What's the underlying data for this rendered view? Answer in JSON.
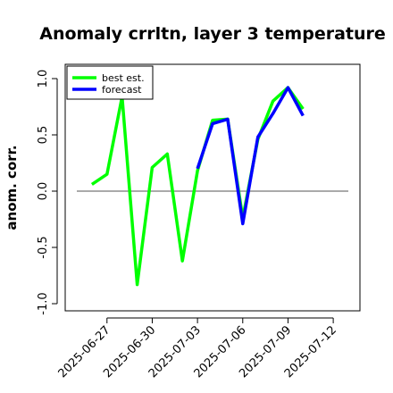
{
  "chart_data": {
    "type": "line",
    "title": "Anomaly crrltn, layer 3 temperature",
    "xlabel": "",
    "ylabel": "anom. corr.",
    "ylim": [
      -1.05,
      1.1
    ],
    "yticks": [
      -1.0,
      -0.5,
      0.0,
      0.5,
      1.0
    ],
    "ytick_labels": [
      "-1.0",
      "-0.5",
      "0.0",
      "0.5",
      "1.0"
    ],
    "xlim": [
      "2025-06-25",
      "2025-07-13"
    ],
    "xticks": [
      "2025-06-27",
      "2025-06-30",
      "2025-07-03",
      "2025-07-06",
      "2025-07-09",
      "2025-07-12"
    ],
    "highlight_tick": "2025-07-03",
    "highlight_color": "#228B22",
    "reference_line": 0.0,
    "grid": false,
    "legend_position": "top-left",
    "series": [
      {
        "name": "best est.",
        "color": "#00ff00",
        "x": [
          "2025-06-26",
          "2025-06-27",
          "2025-06-28",
          "2025-06-29",
          "2025-06-30",
          "2025-07-01",
          "2025-07-02",
          "2025-07-03",
          "2025-07-04",
          "2025-07-05",
          "2025-07-06",
          "2025-07-07",
          "2025-07-08",
          "2025-07-09",
          "2025-07-10"
        ],
        "y": [
          0.06,
          0.15,
          0.84,
          -0.83,
          0.21,
          0.33,
          -0.62,
          0.18,
          0.63,
          0.64,
          -0.24,
          0.46,
          0.8,
          0.92,
          0.73
        ]
      },
      {
        "name": "forecast",
        "color": "#0000ff",
        "x": [
          "2025-07-03",
          "2025-07-04",
          "2025-07-05",
          "2025-07-06",
          "2025-07-07",
          "2025-07-08",
          "2025-07-09",
          "2025-07-10"
        ],
        "y": [
          0.2,
          0.6,
          0.64,
          -0.29,
          0.48,
          0.69,
          0.92,
          0.67
        ]
      }
    ]
  }
}
